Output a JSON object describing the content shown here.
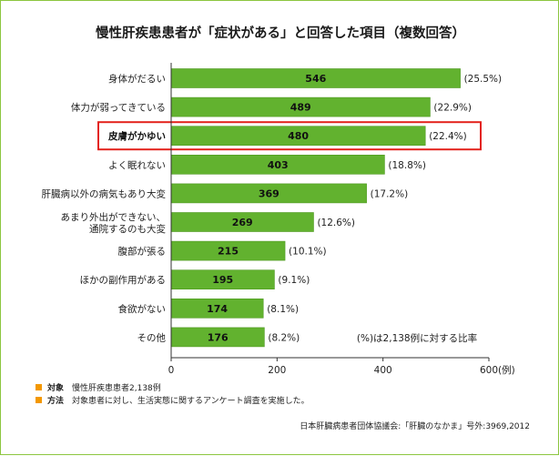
{
  "colors": {
    "bar": "#62b22f",
    "bar_edge": "#4f9a22",
    "highlight_box": "#e3221c",
    "footnote_square": "#f39800",
    "frame": "#8cc63f",
    "axis": "#333333"
  },
  "chart_data": {
    "type": "bar",
    "orientation": "horizontal",
    "title": "慢性肝疾患患者が「症状がある」と回答した項目（複数回答）",
    "categories": [
      "身体がだるい",
      "体力が弱ってきている",
      "皮膚がかゆい",
      "よく眠れない",
      "肝臓病以外の病気もあり大変",
      [
        "あまり外出ができない、",
        "通院するのも大変"
      ],
      "腹部が張る",
      "ほかの副作用がある",
      "食欲がない",
      "その他"
    ],
    "values": [
      546,
      489,
      480,
      403,
      369,
      269,
      215,
      195,
      174,
      176
    ],
    "value_labels": [
      "546",
      "489",
      "480",
      "403",
      "369",
      "269",
      "215",
      "195",
      "174",
      "176"
    ],
    "percent_labels": [
      "(25.5%)",
      "(22.9%)",
      "(22.4%)",
      "(18.8%)",
      "(17.2%)",
      "(12.6%)",
      "(10.1%)",
      "(9.1%)",
      "(8.1%)",
      "(8.2%)"
    ],
    "highlight_index": 2,
    "xlim": [
      0,
      600
    ],
    "xticks": [
      0,
      200,
      400,
      600
    ],
    "xtick_labels": [
      "0",
      "200",
      "400",
      "600"
    ],
    "xunit": "(例)",
    "annotation": "(%)は2,138例に対する比率",
    "grid": false
  },
  "footnotes": [
    {
      "head": "対象",
      "text": "慢性肝疾患患者2,138例"
    },
    {
      "head": "方法",
      "text": "対象患者に対し、生活実態に関するアンケート調査を実施した。"
    }
  ],
  "source": "日本肝臓病患者団体協議会:「肝臓のなかま」号外:3969,2012"
}
